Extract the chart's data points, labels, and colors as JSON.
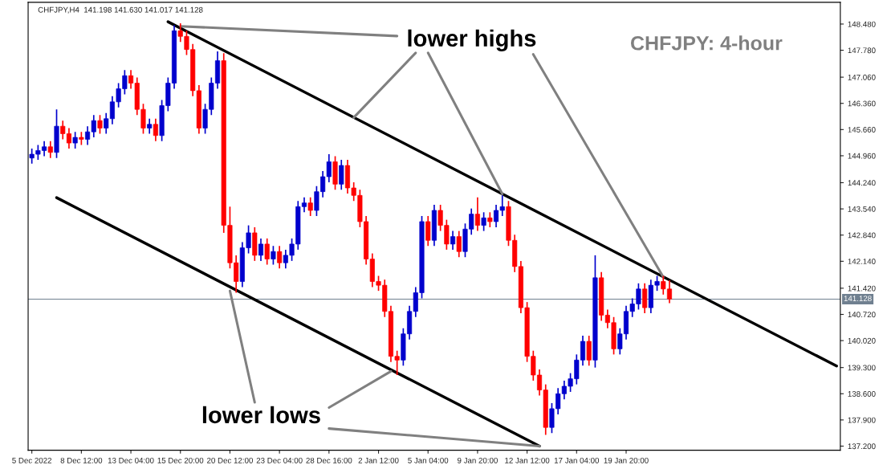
{
  "chart_data": {
    "type": "candlestick",
    "title": "CHFJPY,H4  141.198 141.630 141.017 141.128",
    "subtitle": "CHFJPY: 4-hour",
    "colors": [
      "#0000cd",
      "#0000cd",
      "#0000cd",
      "#ff0000",
      "#0000cd",
      "#ff0000",
      "#ff0000",
      "#0000cd",
      "#ff0000",
      "#0000cd",
      "#0000cd",
      "#ff0000",
      "#0000cd",
      "#0000cd",
      "#0000cd",
      "#0000cd",
      "#ff0000",
      "#ff0000",
      "#ff0000",
      "#0000cd",
      "#ff0000",
      "#0000cd",
      "#0000cd",
      "#0000cd",
      "#ff0000",
      "#ff0000",
      "#ff0000",
      "#ff0000",
      "#0000cd",
      "#0000cd",
      "#0000cd",
      "#ff0000",
      "#ff0000",
      "#ff0000",
      "#0000cd",
      "#0000cd",
      "#ff0000",
      "#0000cd",
      "#ff0000",
      "#0000cd",
      "#ff0000",
      "#0000cd",
      "#0000cd",
      "#0000cd",
      "#0000cd",
      "#ff0000",
      "#0000cd",
      "#0000cd",
      "#0000cd",
      "#ff0000",
      "#0000cd",
      "#ff0000",
      "#ff0000",
      "#ff0000",
      "#ff0000",
      "#ff0000",
      "#ff0000",
      "#ff0000",
      "#ff0000",
      "#ff0000",
      "#0000cd",
      "#0000cd",
      "#0000cd",
      "#0000cd",
      "#ff0000",
      "#0000cd",
      "#ff0000",
      "#ff0000",
      "#0000cd",
      "#ff0000",
      "#0000cd",
      "#0000cd",
      "#ff0000",
      "#0000cd",
      "#ff0000",
      "#0000cd",
      "#0000cd",
      "#ff0000",
      "#ff0000",
      "#ff0000",
      "#ff0000",
      "#ff0000",
      "#ff0000",
      "#ff0000",
      "#0000cd",
      "#0000cd",
      "#0000cd",
      "#0000cd",
      "#0000cd",
      "#0000cd",
      "#ff0000",
      "#0000cd",
      "#ff0000",
      "#ff0000",
      "#ff0000",
      "#0000cd",
      "#0000cd",
      "#0000cd",
      "#0000cd",
      "#ff0000",
      "#0000cd",
      "#0000cd",
      "#ff0000",
      "#ff0000",
      null,
      null,
      null,
      null,
      null,
      null,
      null,
      null,
      null,
      null,
      null,
      null,
      null,
      null,
      null,
      null,
      null,
      null,
      null,
      null,
      null,
      null,
      null,
      null,
      null,
      null,
      null
    ],
    "categories": [
      "5 Dec 2022",
      null,
      null,
      null,
      null,
      null,
      null,
      null,
      "8 Dec 12:00",
      null,
      null,
      null,
      null,
      null,
      null,
      null,
      "13 Dec 04:00",
      null,
      null,
      null,
      null,
      null,
      null,
      null,
      "15 Dec 20:00",
      null,
      null,
      null,
      null,
      null,
      null,
      null,
      "20 Dec 12:00",
      null,
      null,
      null,
      null,
      null,
      null,
      null,
      "23 Dec 04:00",
      null,
      null,
      null,
      null,
      null,
      null,
      null,
      "28 Dec 16:00",
      null,
      null,
      null,
      null,
      null,
      null,
      null,
      "2 Jan 12:00",
      null,
      null,
      null,
      null,
      null,
      null,
      null,
      "5 Jan 04:00",
      null,
      null,
      null,
      null,
      null,
      null,
      null,
      "9 Jan 20:00",
      null,
      null,
      null,
      null,
      null,
      null,
      null,
      "12 Jan 12:00",
      null,
      null,
      null,
      null,
      null,
      null,
      null,
      "17 Jan 04:00",
      null,
      null,
      null,
      null,
      null,
      null,
      null,
      "19 Jan 20:00",
      null,
      null,
      null,
      null,
      null,
      null,
      null,
      null,
      null,
      null,
      null,
      null,
      null,
      null,
      null,
      null,
      null,
      null,
      null,
      null,
      null,
      null,
      null,
      null,
      null,
      null,
      null,
      null,
      null,
      null,
      null,
      null,
      null,
      null
    ],
    "ohlc": [
      [
        144.9,
        145.15,
        144.75,
        145.0
      ],
      [
        145.0,
        145.25,
        144.85,
        145.1
      ],
      [
        145.1,
        145.35,
        144.95,
        145.2
      ],
      [
        145.2,
        145.35,
        144.9,
        145.05
      ],
      [
        145.05,
        146.2,
        144.9,
        145.75
      ],
      [
        145.75,
        145.9,
        145.4,
        145.55
      ],
      [
        145.55,
        145.7,
        145.15,
        145.3
      ],
      [
        145.3,
        145.6,
        145.15,
        145.45
      ],
      [
        145.45,
        145.6,
        145.25,
        145.4
      ],
      [
        145.4,
        145.75,
        145.25,
        145.6
      ],
      [
        145.6,
        146.05,
        145.45,
        145.9
      ],
      [
        145.9,
        146.05,
        145.55,
        145.7
      ],
      [
        145.7,
        146.1,
        145.55,
        145.95
      ],
      [
        145.95,
        146.55,
        145.8,
        146.4
      ],
      [
        146.4,
        146.9,
        146.25,
        146.75
      ],
      [
        146.75,
        147.25,
        146.6,
        147.1
      ],
      [
        147.1,
        147.25,
        146.75,
        146.9
      ],
      [
        146.9,
        147.05,
        146.05,
        146.2
      ],
      [
        146.2,
        146.35,
        145.55,
        145.7
      ],
      [
        145.7,
        145.95,
        145.55,
        145.8
      ],
      [
        145.8,
        145.95,
        145.35,
        145.5
      ],
      [
        145.5,
        146.45,
        145.35,
        146.3
      ],
      [
        146.3,
        147.05,
        146.15,
        146.9
      ],
      [
        146.9,
        148.45,
        146.75,
        148.3
      ],
      [
        148.3,
        148.5,
        148.0,
        148.15
      ],
      [
        148.15,
        148.3,
        147.65,
        147.8
      ],
      [
        147.8,
        147.95,
        146.55,
        146.7
      ],
      [
        146.7,
        146.85,
        145.55,
        145.7
      ],
      [
        145.7,
        146.35,
        145.55,
        146.2
      ],
      [
        146.2,
        147.05,
        146.05,
        146.9
      ],
      [
        146.9,
        147.75,
        146.75,
        147.5
      ],
      [
        147.5,
        147.7,
        142.9,
        143.1
      ],
      [
        143.1,
        143.6,
        141.95,
        142.1
      ],
      [
        142.1,
        142.3,
        141.3,
        141.6
      ],
      [
        141.6,
        142.65,
        141.45,
        142.5
      ],
      [
        142.5,
        143.1,
        142.35,
        142.9
      ],
      [
        142.9,
        143.05,
        142.15,
        142.3
      ],
      [
        142.3,
        142.75,
        142.15,
        142.6
      ],
      [
        142.6,
        142.75,
        142.05,
        142.2
      ],
      [
        142.2,
        142.55,
        142.05,
        142.4
      ],
      [
        142.4,
        142.55,
        141.95,
        142.1
      ],
      [
        142.1,
        142.45,
        141.95,
        142.3
      ],
      [
        142.3,
        142.75,
        142.15,
        142.6
      ],
      [
        142.6,
        143.75,
        142.45,
        143.6
      ],
      [
        143.6,
        143.85,
        143.45,
        143.7
      ],
      [
        143.7,
        143.85,
        143.35,
        143.5
      ],
      [
        143.5,
        144.15,
        143.35,
        144.0
      ],
      [
        144.0,
        144.55,
        143.85,
        144.4
      ],
      [
        144.4,
        145.0,
        144.25,
        144.8
      ],
      [
        144.8,
        144.95,
        144.05,
        144.2
      ],
      [
        144.2,
        144.85,
        144.05,
        144.7
      ],
      [
        144.7,
        144.85,
        143.95,
        144.1
      ],
      [
        144.1,
        144.25,
        143.75,
        143.9
      ],
      [
        143.9,
        144.05,
        143.05,
        143.2
      ],
      [
        143.2,
        143.35,
        142.05,
        142.2
      ],
      [
        142.2,
        142.35,
        141.45,
        141.6
      ],
      [
        141.6,
        141.75,
        141.35,
        141.5
      ],
      [
        141.5,
        141.65,
        140.65,
        140.8
      ],
      [
        140.8,
        140.95,
        139.45,
        139.6
      ],
      [
        139.6,
        139.75,
        139.1,
        139.5
      ],
      [
        139.5,
        140.35,
        139.35,
        140.2
      ],
      [
        140.2,
        140.95,
        140.05,
        140.8
      ],
      [
        140.8,
        141.45,
        140.65,
        141.3
      ],
      [
        141.3,
        143.35,
        141.15,
        143.2
      ],
      [
        143.2,
        143.35,
        142.55,
        142.7
      ],
      [
        142.7,
        143.65,
        142.55,
        143.5
      ],
      [
        143.5,
        143.65,
        142.95,
        143.1
      ],
      [
        143.1,
        143.25,
        142.45,
        142.6
      ],
      [
        142.6,
        142.95,
        142.45,
        142.8
      ],
      [
        142.8,
        142.95,
        142.25,
        142.4
      ],
      [
        142.4,
        143.15,
        142.25,
        143.0
      ],
      [
        143.0,
        143.55,
        142.85,
        143.4
      ],
      [
        143.4,
        143.85,
        142.95,
        143.1
      ],
      [
        143.1,
        143.45,
        142.95,
        143.3
      ],
      [
        143.3,
        143.45,
        143.05,
        143.2
      ],
      [
        143.2,
        143.65,
        143.05,
        143.5
      ],
      [
        143.5,
        143.9,
        143.35,
        143.6
      ],
      [
        143.6,
        143.75,
        142.55,
        142.7
      ],
      [
        142.7,
        142.85,
        141.85,
        142.0
      ],
      [
        142.0,
        142.15,
        140.75,
        140.9
      ],
      [
        140.9,
        141.05,
        139.45,
        139.6
      ],
      [
        139.6,
        139.75,
        138.95,
        139.1
      ],
      [
        139.1,
        139.25,
        138.55,
        138.7
      ],
      [
        138.7,
        138.85,
        137.5,
        137.7
      ],
      [
        137.7,
        138.35,
        137.55,
        138.2
      ],
      [
        138.2,
        138.75,
        138.05,
        138.6
      ],
      [
        138.6,
        138.95,
        138.45,
        138.8
      ],
      [
        138.8,
        139.15,
        138.65,
        139.0
      ],
      [
        139.0,
        139.65,
        138.85,
        139.5
      ],
      [
        139.5,
        140.15,
        139.35,
        140.0
      ],
      [
        140.0,
        140.15,
        139.35,
        139.5
      ],
      [
        139.5,
        142.3,
        139.3,
        141.7
      ],
      [
        141.7,
        141.85,
        140.55,
        140.7
      ],
      [
        140.7,
        140.85,
        140.35,
        140.5
      ],
      [
        140.5,
        140.65,
        139.65,
        139.8
      ],
      [
        139.8,
        140.35,
        139.65,
        140.2
      ],
      [
        140.2,
        140.95,
        140.05,
        140.8
      ],
      [
        140.8,
        141.15,
        140.65,
        141.0
      ],
      [
        141.0,
        141.55,
        140.85,
        141.4
      ],
      [
        141.4,
        141.55,
        140.75,
        140.9
      ],
      [
        140.9,
        141.65,
        140.75,
        141.5
      ],
      [
        141.5,
        141.75,
        141.35,
        141.6
      ],
      [
        141.6,
        141.75,
        141.25,
        141.4
      ],
      [
        141.4,
        141.63,
        141.02,
        141.13
      ],
      null,
      null,
      null,
      null,
      null,
      null,
      null,
      null,
      null,
      null,
      null,
      null,
      null,
      null,
      null,
      null,
      null,
      null,
      null,
      null,
      null,
      null,
      null,
      null,
      null,
      null,
      null
    ],
    "series": [
      {
        "type": "line",
        "color": "#000000",
        "values": [
          null,
          null,
          null,
          null,
          null,
          null,
          null,
          null,
          null,
          null,
          null,
          null,
          null,
          null,
          null,
          null,
          null,
          null,
          null,
          null,
          null,
          null,
          148.54,
          null,
          null,
          null,
          null,
          null,
          null,
          null,
          null,
          null,
          null,
          null,
          null,
          null,
          null,
          null,
          null,
          null,
          null,
          null,
          null,
          null,
          null,
          null,
          null,
          null,
          null,
          null,
          null,
          null,
          null,
          null,
          null,
          null,
          null,
          null,
          null,
          null,
          null,
          null,
          null,
          null,
          null,
          null,
          null,
          null,
          null,
          null,
          null,
          null,
          null,
          null,
          null,
          null,
          null,
          null,
          null,
          null,
          null,
          null,
          null,
          null,
          null,
          null,
          null,
          null,
          null,
          null,
          null,
          null,
          null,
          null,
          null,
          null,
          null,
          null,
          null,
          null,
          null,
          null,
          null,
          null,
          null,
          null,
          null,
          null,
          null,
          null,
          null,
          null,
          null,
          null,
          null,
          null,
          null,
          null,
          null,
          null,
          null,
          null,
          null,
          null,
          null,
          null,
          null,
          null,
          null,
          null,
          139.34
        ]
      },
      {
        "type": "line",
        "color": "#000000",
        "values": [
          null,
          null,
          null,
          null,
          143.84,
          null,
          null,
          null,
          null,
          null,
          null,
          null,
          null,
          null,
          null,
          null,
          null,
          null,
          null,
          null,
          null,
          null,
          null,
          null,
          null,
          null,
          null,
          null,
          null,
          null,
          null,
          null,
          null,
          null,
          null,
          null,
          null,
          null,
          null,
          null,
          null,
          null,
          null,
          null,
          null,
          null,
          null,
          null,
          null,
          null,
          null,
          null,
          null,
          null,
          null,
          null,
          null,
          null,
          null,
          null,
          null,
          null,
          null,
          null,
          null,
          null,
          null,
          null,
          null,
          null,
          null,
          null,
          null,
          null,
          null,
          null,
          null,
          null,
          null,
          null,
          null,
          null,
          137.2,
          null,
          null,
          null,
          null,
          null,
          null,
          null,
          null,
          null,
          null,
          null,
          null,
          null,
          null,
          null,
          null,
          null,
          null,
          null,
          null,
          null,
          null,
          null,
          null,
          null,
          null,
          null,
          null,
          null,
          null,
          null,
          null,
          null,
          null,
          null,
          null,
          null,
          null,
          null,
          null,
          null,
          null,
          null,
          null,
          null,
          null,
          null,
          null
        ]
      },
      {
        "type": "line",
        "color": "#808080",
        "values": [
          null,
          null,
          null,
          null,
          null,
          null,
          null,
          null,
          null,
          null,
          null,
          null,
          null,
          null,
          null,
          null,
          null,
          null,
          null,
          null,
          null,
          null,
          null,
          null,
          148.42,
          null,
          null,
          null,
          null,
          null,
          null,
          null,
          null,
          null,
          null,
          null,
          null,
          null,
          null,
          null,
          null,
          null,
          null,
          null,
          null,
          null,
          null,
          null,
          null,
          null,
          null,
          null,
          null,
          null,
          null,
          null,
          null,
          null,
          null,
          148.16,
          null,
          null,
          null,
          null,
          null,
          null,
          null,
          null,
          null,
          null,
          null,
          null,
          null,
          null,
          null,
          null,
          null,
          null,
          null,
          null,
          null,
          null,
          null,
          null,
          null,
          null,
          null,
          null,
          null,
          null,
          null,
          null,
          null,
          null,
          null,
          null,
          null,
          null,
          null,
          null,
          null,
          null,
          null,
          null,
          null,
          null,
          null,
          null,
          null,
          null,
          null,
          null,
          null,
          null,
          null,
          null,
          null,
          null,
          null,
          null,
          null,
          null,
          null,
          null,
          null,
          null,
          null,
          null,
          null,
          null,
          null
        ]
      },
      {
        "type": "line",
        "color": "#808080",
        "values": [
          null,
          null,
          null,
          null,
          null,
          null,
          null,
          null,
          null,
          null,
          null,
          null,
          null,
          null,
          null,
          null,
          null,
          null,
          null,
          null,
          null,
          null,
          null,
          null,
          null,
          null,
          null,
          null,
          null,
          null,
          null,
          null,
          null,
          null,
          null,
          null,
          null,
          null,
          null,
          null,
          null,
          null,
          null,
          null,
          null,
          null,
          null,
          null,
          null,
          null,
          null,
          null,
          145.98,
          null,
          null,
          null,
          null,
          null,
          null,
          null,
          null,
          null,
          147.71,
          null,
          null,
          null,
          null,
          null,
          null,
          null,
          null,
          null,
          null,
          null,
          null,
          null,
          null,
          null,
          null,
          null,
          null,
          null,
          null,
          null,
          null,
          null,
          null,
          null,
          null,
          null,
          null,
          null,
          null,
          null,
          null,
          null,
          null,
          null,
          null,
          null,
          null,
          null,
          null,
          null,
          null,
          null,
          null,
          null,
          null,
          null,
          null,
          null,
          null,
          null,
          null,
          null,
          null,
          null,
          null,
          null,
          null,
          null,
          null,
          null,
          null,
          null,
          null,
          null,
          null,
          null,
          null
        ]
      },
      {
        "type": "line",
        "color": "#808080",
        "values": [
          null,
          null,
          null,
          null,
          null,
          null,
          null,
          null,
          null,
          null,
          null,
          null,
          null,
          null,
          null,
          null,
          null,
          null,
          null,
          null,
          null,
          null,
          null,
          null,
          null,
          null,
          null,
          null,
          null,
          null,
          null,
          null,
          null,
          null,
          null,
          null,
          null,
          null,
          null,
          null,
          null,
          null,
          null,
          null,
          null,
          null,
          null,
          null,
          null,
          null,
          null,
          null,
          null,
          null,
          null,
          null,
          null,
          null,
          null,
          null,
          null,
          null,
          null,
          null,
          147.71,
          null,
          null,
          null,
          null,
          null,
          null,
          null,
          null,
          null,
          null,
          null,
          143.94,
          null,
          null,
          null,
          null,
          null,
          null,
          null,
          null,
          null,
          null,
          null,
          null,
          null,
          null,
          null,
          null,
          null,
          null,
          null,
          null,
          null,
          null,
          null,
          null,
          null,
          null,
          null,
          null,
          null,
          null,
          null,
          null,
          null,
          null,
          null,
          null,
          null,
          null,
          null,
          null,
          null,
          null,
          null,
          null,
          null,
          null,
          null,
          null,
          null,
          null,
          null,
          null,
          null,
          null
        ]
      },
      {
        "type": "line",
        "color": "#808080",
        "values": [
          null,
          null,
          null,
          null,
          null,
          null,
          null,
          null,
          null,
          null,
          null,
          null,
          null,
          null,
          null,
          null,
          null,
          null,
          null,
          null,
          null,
          null,
          null,
          null,
          null,
          null,
          null,
          null,
          null,
          null,
          null,
          null,
          null,
          null,
          null,
          null,
          null,
          null,
          null,
          null,
          null,
          null,
          null,
          null,
          null,
          null,
          null,
          null,
          null,
          null,
          null,
          null,
          null,
          null,
          null,
          null,
          null,
          null,
          null,
          null,
          null,
          null,
          null,
          null,
          null,
          null,
          null,
          null,
          null,
          null,
          null,
          null,
          null,
          null,
          null,
          null,
          null,
          null,
          null,
          null,
          null,
          147.67,
          null,
          null,
          null,
          null,
          null,
          null,
          null,
          null,
          null,
          null,
          null,
          null,
          null,
          null,
          null,
          null,
          null,
          null,
          null,
          null,
          141.72,
          null,
          null,
          null,
          null,
          null,
          null,
          null,
          null,
          null,
          null,
          null,
          null,
          null,
          null,
          null,
          null,
          null,
          null,
          null,
          null,
          null,
          null,
          null,
          null,
          null,
          null,
          null,
          null
        ]
      },
      {
        "type": "line",
        "color": "#808080",
        "values": [
          null,
          null,
          null,
          null,
          null,
          null,
          null,
          null,
          null,
          null,
          null,
          null,
          null,
          null,
          null,
          null,
          null,
          null,
          null,
          null,
          null,
          null,
          null,
          null,
          null,
          null,
          null,
          null,
          null,
          null,
          null,
          null,
          141.35,
          null,
          null,
          null,
          138.37,
          null,
          null,
          null,
          null,
          null,
          null,
          null,
          null,
          null,
          null,
          null,
          null,
          null,
          null,
          null,
          null,
          null,
          null,
          null,
          null,
          null,
          null,
          null,
          null,
          null,
          null,
          null,
          null,
          null,
          null,
          null,
          null,
          null,
          null,
          null,
          null,
          null,
          null,
          null,
          null,
          null,
          null,
          null,
          null,
          null,
          null,
          null,
          null,
          null,
          null,
          null,
          null,
          null,
          null,
          null,
          null,
          null,
          null,
          null,
          null,
          null,
          null,
          null,
          null,
          null,
          null,
          null,
          null,
          null,
          null,
          null,
          null,
          null,
          null,
          null,
          null,
          null,
          null,
          null,
          null,
          null,
          null,
          null,
          null,
          null,
          null,
          null,
          null,
          null,
          null,
          null,
          null,
          null,
          null
        ]
      },
      {
        "type": "line",
        "color": "#808080",
        "values": [
          null,
          null,
          null,
          null,
          null,
          null,
          null,
          null,
          null,
          null,
          null,
          null,
          null,
          null,
          null,
          null,
          null,
          null,
          null,
          null,
          null,
          null,
          null,
          null,
          null,
          null,
          null,
          null,
          null,
          null,
          null,
          null,
          null,
          null,
          null,
          null,
          null,
          null,
          null,
          null,
          null,
          null,
          null,
          null,
          null,
          null,
          null,
          null,
          138.23,
          null,
          null,
          null,
          null,
          null,
          null,
          null,
          null,
          null,
          139.2,
          null,
          null,
          null,
          null,
          null,
          null,
          null,
          null,
          null,
          null,
          null,
          null,
          null,
          null,
          null,
          null,
          null,
          null,
          null,
          null,
          null,
          null,
          null,
          null,
          null,
          null,
          null,
          null,
          null,
          null,
          null,
          null,
          null,
          null,
          null,
          null,
          null,
          null,
          null,
          null,
          null,
          null,
          null,
          null,
          null,
          null,
          null,
          null,
          null,
          null,
          null,
          null,
          null,
          null,
          null,
          null,
          null,
          null,
          null,
          null,
          null,
          null,
          null,
          null,
          null,
          null,
          null,
          null,
          null,
          null,
          null,
          null
        ]
      },
      {
        "type": "line",
        "color": "#808080",
        "values": [
          null,
          null,
          null,
          null,
          null,
          null,
          null,
          null,
          null,
          null,
          null,
          null,
          null,
          null,
          null,
          null,
          null,
          null,
          null,
          null,
          null,
          null,
          null,
          null,
          null,
          null,
          null,
          null,
          null,
          null,
          null,
          null,
          null,
          null,
          null,
          null,
          null,
          null,
          null,
          null,
          null,
          null,
          null,
          null,
          null,
          null,
          null,
          null,
          137.67,
          null,
          null,
          null,
          null,
          null,
          null,
          null,
          null,
          null,
          null,
          null,
          null,
          null,
          null,
          null,
          null,
          null,
          null,
          null,
          null,
          null,
          null,
          null,
          null,
          null,
          null,
          null,
          null,
          null,
          null,
          null,
          null,
          null,
          137.2,
          null,
          null,
          null,
          null,
          null,
          null,
          null,
          null,
          null,
          null,
          null,
          null,
          null,
          null,
          null,
          null,
          null,
          null,
          null,
          null,
          null,
          null,
          null,
          null,
          null,
          null,
          null,
          null,
          null,
          null,
          null,
          null,
          null,
          null,
          null,
          null,
          null,
          null,
          null,
          null,
          null,
          null,
          null,
          null,
          null,
          null,
          null,
          null
        ]
      }
    ],
    "annotations": [
      "lower highs",
      "lower lows"
    ],
    "ref_lines": [
      {
        "axis": "y",
        "value": 141.128,
        "label": "141.128",
        "color": "#708090"
      }
    ],
    "ylim": [
      137.09,
      149.06
    ],
    "yticks": [
      {
        "value": 137.2,
        "label": "137.200"
      },
      {
        "value": 137.9,
        "label": "137.900"
      },
      {
        "value": 138.6,
        "label": "138.600"
      },
      {
        "value": 139.3,
        "label": "139.300"
      },
      {
        "value": 140.02,
        "label": "140.020"
      },
      {
        "value": 140.72,
        "label": "140.720"
      },
      {
        "value": 141.42,
        "label": "141.420"
      },
      {
        "value": 142.14,
        "label": "142.140"
      },
      {
        "value": 142.84,
        "label": "142.840"
      },
      {
        "value": 143.54,
        "label": "143.540"
      },
      {
        "value": 144.24,
        "label": "144.240"
      },
      {
        "value": 144.96,
        "label": "144.960"
      },
      {
        "value": 145.66,
        "label": "145.660"
      },
      {
        "value": 146.36,
        "label": "146.360"
      },
      {
        "value": 147.06,
        "label": "147.060"
      },
      {
        "value": 147.78,
        "label": "147.780"
      },
      {
        "value": 148.48,
        "label": "148.480"
      }
    ],
    "grid": false
  }
}
